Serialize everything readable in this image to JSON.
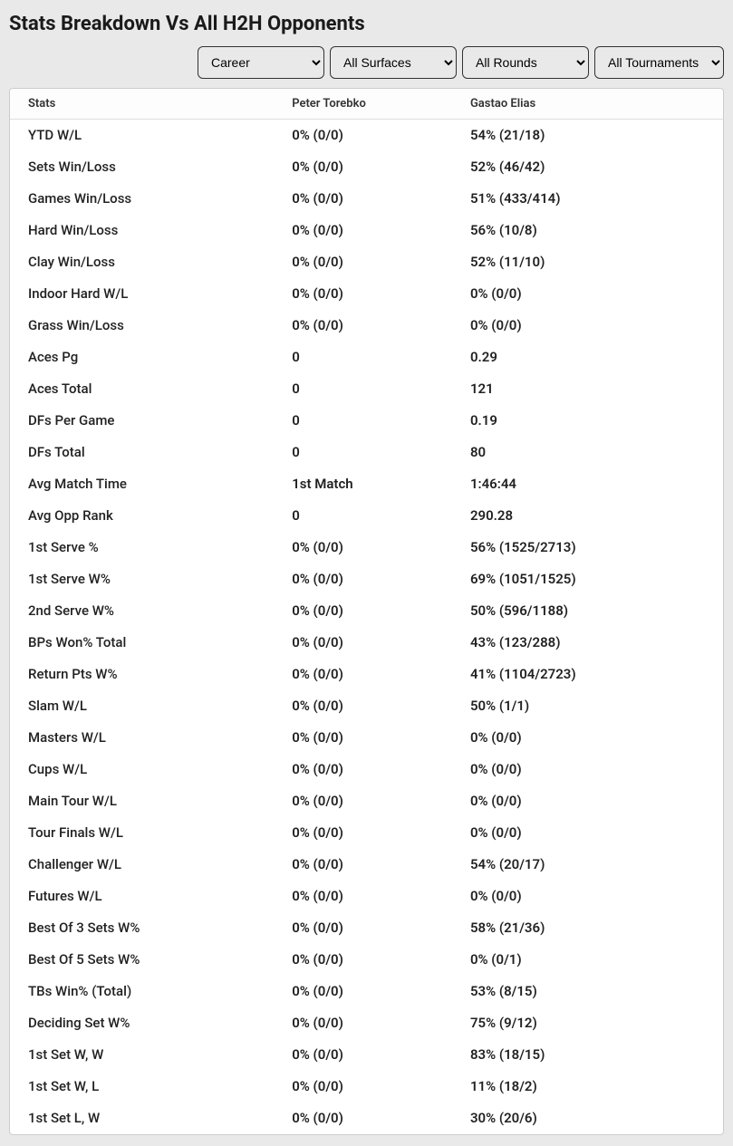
{
  "title": "Stats Breakdown Vs All H2H Opponents",
  "filters": {
    "timeframe": {
      "value": "Career",
      "options": [
        "Career"
      ]
    },
    "surface": {
      "value": "All Surfaces",
      "options": [
        "All Surfaces"
      ]
    },
    "round": {
      "value": "All Rounds",
      "options": [
        "All Rounds"
      ]
    },
    "tournament": {
      "value": "All Tournaments",
      "options": [
        "All Tournaments"
      ]
    }
  },
  "table": {
    "columns": [
      "Stats",
      "Peter Torebko",
      "Gastao Elias"
    ],
    "rows": [
      [
        "YTD W/L",
        "0% (0/0)",
        "54% (21/18)"
      ],
      [
        "Sets Win/Loss",
        "0% (0/0)",
        "52% (46/42)"
      ],
      [
        "Games Win/Loss",
        "0% (0/0)",
        "51% (433/414)"
      ],
      [
        "Hard Win/Loss",
        "0% (0/0)",
        "56% (10/8)"
      ],
      [
        "Clay Win/Loss",
        "0% (0/0)",
        "52% (11/10)"
      ],
      [
        "Indoor Hard W/L",
        "0% (0/0)",
        "0% (0/0)"
      ],
      [
        "Grass Win/Loss",
        "0% (0/0)",
        "0% (0/0)"
      ],
      [
        "Aces Pg",
        "0",
        "0.29"
      ],
      [
        "Aces Total",
        "0",
        "121"
      ],
      [
        "DFs Per Game",
        "0",
        "0.19"
      ],
      [
        "DFs Total",
        "0",
        "80"
      ],
      [
        "Avg Match Time",
        "1st Match",
        "1:46:44"
      ],
      [
        "Avg Opp Rank",
        "0",
        "290.28"
      ],
      [
        "1st Serve %",
        "0% (0/0)",
        "56% (1525/2713)"
      ],
      [
        "1st Serve W%",
        "0% (0/0)",
        "69% (1051/1525)"
      ],
      [
        "2nd Serve W%",
        "0% (0/0)",
        "50% (596/1188)"
      ],
      [
        "BPs Won% Total",
        "0% (0/0)",
        "43% (123/288)"
      ],
      [
        "Return Pts W%",
        "0% (0/0)",
        "41% (1104/2723)"
      ],
      [
        "Slam W/L",
        "0% (0/0)",
        "50% (1/1)"
      ],
      [
        "Masters W/L",
        "0% (0/0)",
        "0% (0/0)"
      ],
      [
        "Cups W/L",
        "0% (0/0)",
        "0% (0/0)"
      ],
      [
        "Main Tour W/L",
        "0% (0/0)",
        "0% (0/0)"
      ],
      [
        "Tour Finals W/L",
        "0% (0/0)",
        "0% (0/0)"
      ],
      [
        "Challenger W/L",
        "0% (0/0)",
        "54% (20/17)"
      ],
      [
        "Futures W/L",
        "0% (0/0)",
        "0% (0/0)"
      ],
      [
        "Best Of 3 Sets W%",
        "0% (0/0)",
        "58% (21/36)"
      ],
      [
        "Best Of 5 Sets W%",
        "0% (0/0)",
        "0% (0/1)"
      ],
      [
        "TBs Win% (Total)",
        "0% (0/0)",
        "53% (8/15)"
      ],
      [
        "Deciding Set W%",
        "0% (0/0)",
        "75% (9/12)"
      ],
      [
        "1st Set W, W",
        "0% (0/0)",
        "83% (18/15)"
      ],
      [
        "1st Set W, L",
        "0% (0/0)",
        "11% (18/2)"
      ],
      [
        "1st Set L, W",
        "0% (0/0)",
        "30% (20/6)"
      ]
    ]
  },
  "style": {
    "body_bg": "#e9e9e9",
    "table_bg": "#ffffff",
    "border_color": "#cccccc",
    "header_text_color": "#333333",
    "cell_text_color": "#222222",
    "title_fontsize": 22,
    "header_fontsize": 13,
    "cell_fontsize": 15
  }
}
